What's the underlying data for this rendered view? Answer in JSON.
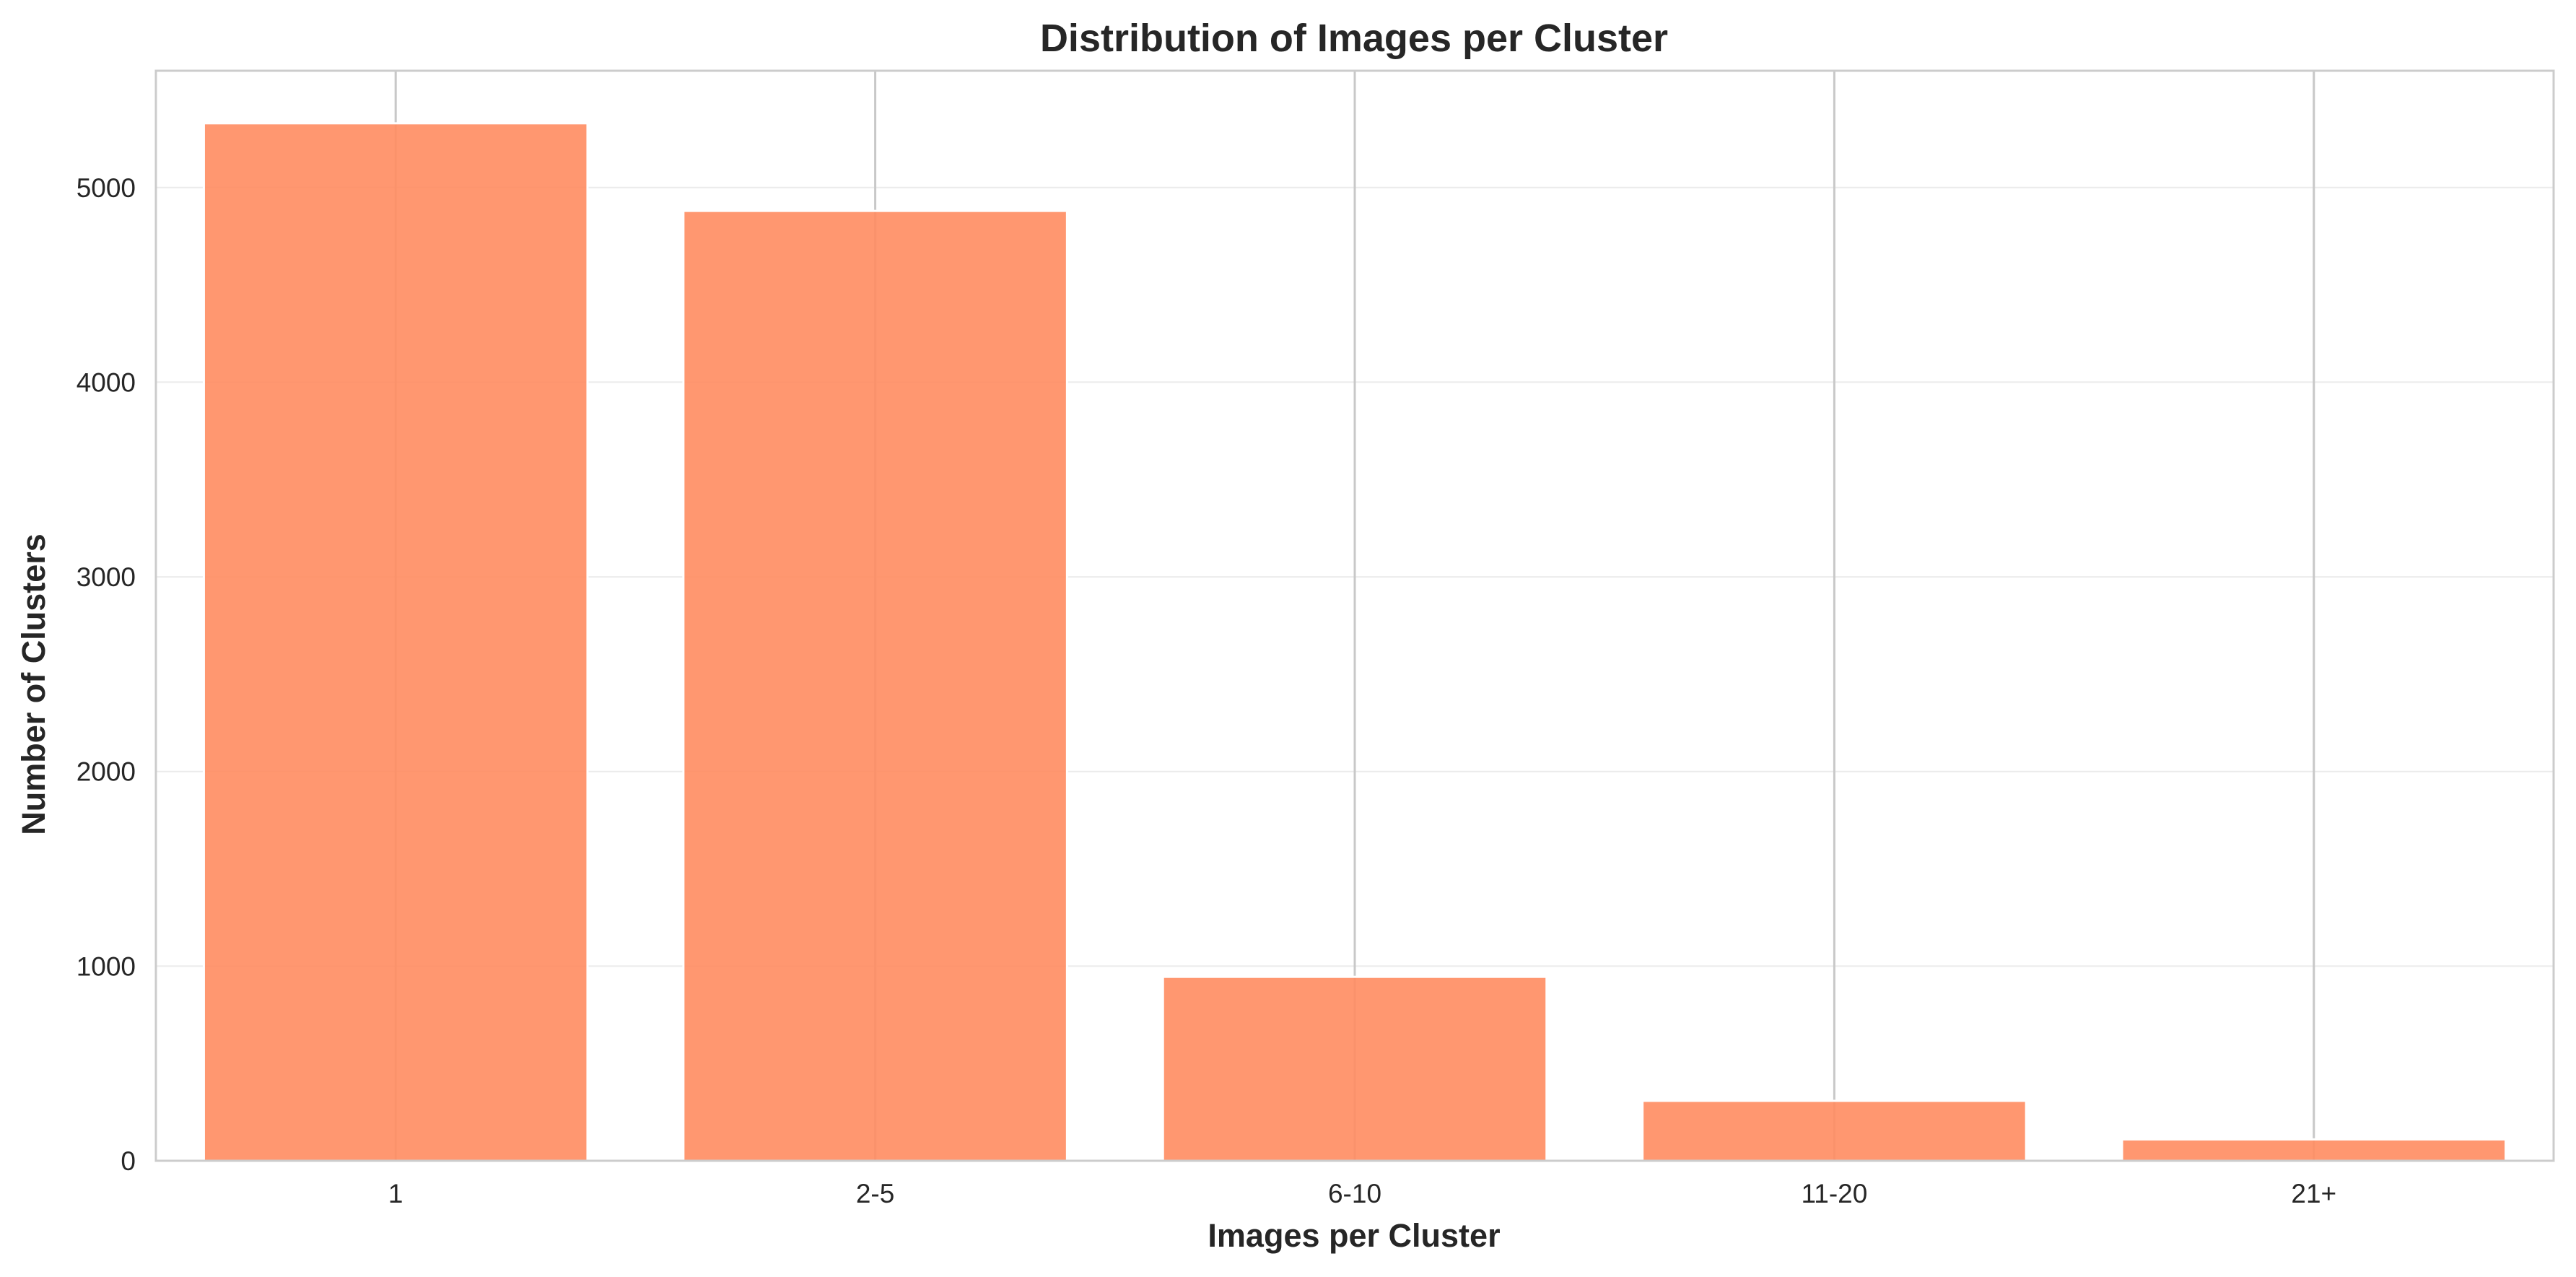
{
  "chart_data": {
    "type": "bar",
    "title": "Distribution of Images per Cluster",
    "xlabel": "Images per Cluster",
    "ylabel": "Number of Clusters",
    "categories": [
      "1",
      "2-5",
      "6-10",
      "11-20",
      "21+"
    ],
    "values": [
      5330,
      4880,
      945,
      308,
      110
    ],
    "ylim": [
      0,
      5600
    ],
    "yticks": [
      0,
      1000,
      2000,
      3000,
      4000,
      5000
    ],
    "grid": true,
    "legend": "none",
    "colors": {
      "bar": "#ff8c61",
      "grid_y": "#ebebeb",
      "grid_x": "#c8c8c8",
      "axes_border": "#cccccc",
      "text": "#262626"
    }
  }
}
